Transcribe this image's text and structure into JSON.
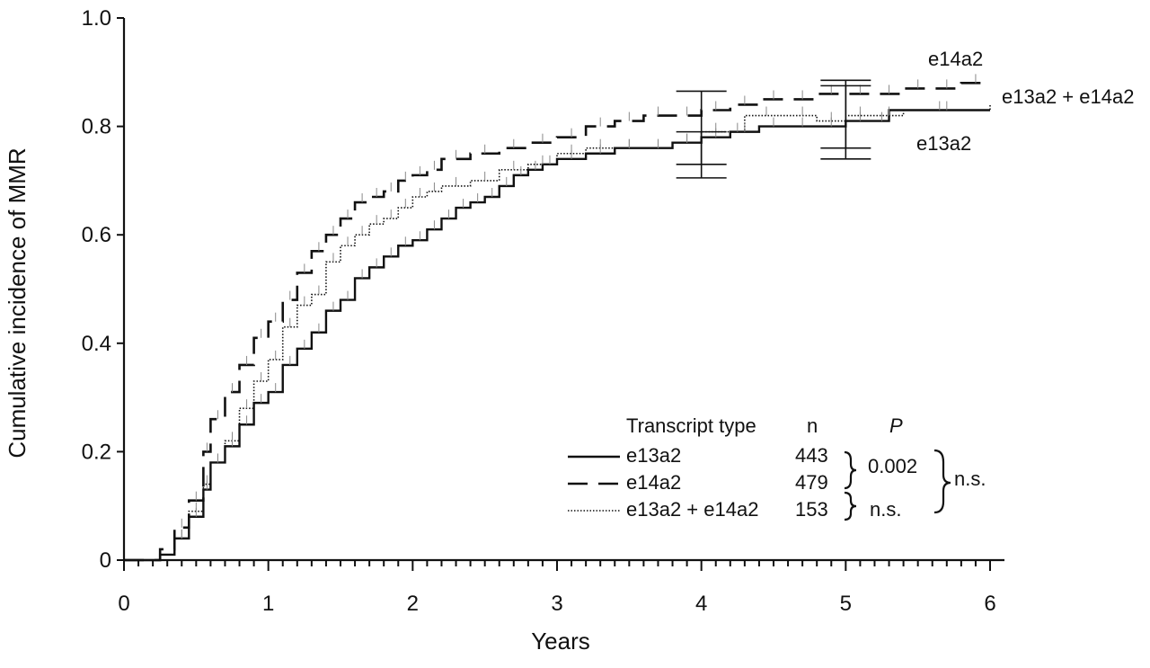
{
  "chart_data": {
    "type": "line",
    "subtype": "cumulative-incidence-step",
    "ylabel": "Cumulative incidence of MMR",
    "xlabel": "Years",
    "xlim": [
      0,
      6
    ],
    "ylim": [
      0,
      1.0
    ],
    "xticks": [
      0,
      1,
      2,
      3,
      4,
      5,
      6
    ],
    "xtick_labels": [
      "0",
      "1",
      "2",
      "3",
      "4",
      "5",
      "6"
    ],
    "yticks": [
      0,
      0.2,
      0.4,
      0.6,
      0.8,
      1.0
    ],
    "ytick_labels": [
      "0",
      "0.2",
      "0.4",
      "0.6",
      "0.8",
      "1.0"
    ],
    "series": [
      {
        "name": "e13a2",
        "style": "solid",
        "label": "e13a2",
        "x": [
          0,
          0.25,
          0.35,
          0.45,
          0.55,
          0.6,
          0.7,
          0.8,
          0.9,
          1.0,
          1.1,
          1.2,
          1.3,
          1.4,
          1.5,
          1.6,
          1.7,
          1.8,
          1.9,
          2.0,
          2.1,
          2.2,
          2.3,
          2.4,
          2.5,
          2.6,
          2.7,
          2.8,
          2.9,
          3.0,
          3.2,
          3.4,
          3.6,
          3.8,
          4.0,
          4.2,
          4.4,
          4.6,
          4.8,
          5.0,
          5.2,
          5.3,
          6.0
        ],
        "y": [
          0,
          0.01,
          0.04,
          0.08,
          0.13,
          0.18,
          0.21,
          0.25,
          0.29,
          0.31,
          0.36,
          0.39,
          0.42,
          0.46,
          0.48,
          0.52,
          0.54,
          0.56,
          0.58,
          0.59,
          0.61,
          0.63,
          0.65,
          0.66,
          0.67,
          0.69,
          0.71,
          0.72,
          0.73,
          0.74,
          0.75,
          0.76,
          0.76,
          0.77,
          0.78,
          0.79,
          0.8,
          0.8,
          0.8,
          0.81,
          0.81,
          0.83,
          0.83
        ]
      },
      {
        "name": "e14a2",
        "style": "dashed",
        "label": "e14a2",
        "x": [
          0,
          0.25,
          0.35,
          0.45,
          0.55,
          0.6,
          0.7,
          0.8,
          0.9,
          1.0,
          1.1,
          1.2,
          1.3,
          1.4,
          1.5,
          1.6,
          1.7,
          1.8,
          1.9,
          2.0,
          2.1,
          2.2,
          2.4,
          2.6,
          2.8,
          3.0,
          3.2,
          3.4,
          3.6,
          3.8,
          4.0,
          4.2,
          4.4,
          4.6,
          4.8,
          5.0,
          5.2,
          5.4,
          5.6,
          5.8,
          6.0
        ],
        "y": [
          0,
          0.02,
          0.06,
          0.11,
          0.2,
          0.26,
          0.31,
          0.36,
          0.41,
          0.44,
          0.48,
          0.53,
          0.57,
          0.6,
          0.63,
          0.66,
          0.67,
          0.68,
          0.7,
          0.71,
          0.72,
          0.74,
          0.75,
          0.76,
          0.77,
          0.78,
          0.8,
          0.81,
          0.82,
          0.82,
          0.83,
          0.84,
          0.85,
          0.85,
          0.86,
          0.86,
          0.86,
          0.87,
          0.87,
          0.88,
          0.88
        ]
      },
      {
        "name": "e13a2 + e14a2",
        "style": "dotted",
        "label": "e13a2 + e14a2",
        "x": [
          0,
          0.25,
          0.35,
          0.45,
          0.55,
          0.6,
          0.7,
          0.8,
          0.9,
          1.0,
          1.1,
          1.2,
          1.3,
          1.4,
          1.5,
          1.6,
          1.7,
          1.8,
          1.9,
          2.0,
          2.1,
          2.2,
          2.4,
          2.6,
          2.8,
          3.0,
          3.2,
          3.4,
          3.6,
          3.8,
          4.0,
          4.2,
          4.3,
          4.6,
          4.8,
          5.0,
          5.2,
          5.4,
          6.0
        ],
        "y": [
          0,
          0.01,
          0.04,
          0.09,
          0.14,
          0.18,
          0.22,
          0.28,
          0.33,
          0.37,
          0.43,
          0.47,
          0.49,
          0.55,
          0.58,
          0.6,
          0.62,
          0.63,
          0.65,
          0.67,
          0.68,
          0.69,
          0.7,
          0.72,
          0.73,
          0.75,
          0.76,
          0.76,
          0.76,
          0.77,
          0.79,
          0.79,
          0.82,
          0.82,
          0.81,
          0.82,
          0.82,
          0.83,
          0.84
        ]
      }
    ],
    "error_bars": [
      {
        "x": 4.0,
        "low": 0.705,
        "high": 0.865
      },
      {
        "x": 4.0,
        "low": 0.73,
        "high": 0.79
      },
      {
        "x": 5.0,
        "low": 0.74,
        "high": 0.885
      },
      {
        "x": 5.0,
        "low": 0.76,
        "high": 0.875
      }
    ],
    "legend": {
      "placement": "bottom-right",
      "header": {
        "type": "Transcript type",
        "n": "n",
        "p": "P"
      },
      "rows": [
        {
          "label": "e13a2",
          "n": "443",
          "style": "solid"
        },
        {
          "label": "e14a2",
          "n": "479",
          "style": "dashed"
        },
        {
          "label": "e13a2 + e14a2",
          "n": "153",
          "style": "dotted"
        }
      ],
      "comparisons": [
        {
          "pair": "e13a2 vs e14a2",
          "p": "0.002"
        },
        {
          "pair": "e14a2 vs e13a2 + e14a2",
          "p": "n.s."
        },
        {
          "pair": "overall",
          "p": "n.s."
        }
      ]
    }
  }
}
